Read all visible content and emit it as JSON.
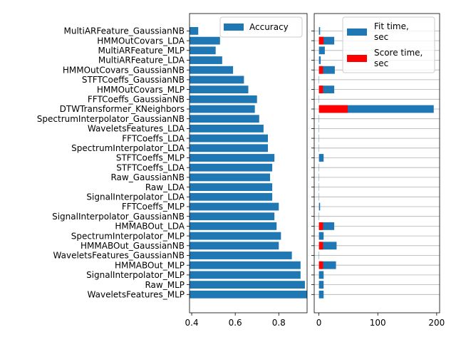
{
  "chart_data": [
    {
      "type": "bar",
      "orientation": "horizontal",
      "xlim": [
        0.39,
        0.93
      ],
      "xticks": [
        0.4,
        0.6,
        0.8
      ],
      "xticklabels": [
        "0.4",
        "0.6",
        "0.8"
      ],
      "legend": {
        "position": "top-right",
        "entries": [
          {
            "label": "Accuracy",
            "color": "#1f77b4"
          }
        ]
      },
      "categories": [
        "MultiARFeature_GaussianNB",
        "HMMOutCovars_LDA",
        "MultiARFeature_MLP",
        "MultiARFeature_LDA",
        "HMMOutCovars_GaussianNB",
        "STFTCoeffs_GaussianNB",
        "HMMOutCovars_MLP",
        "FFTCoeffs_GaussianNB",
        "DTWTransformer_KNeighbors",
        "SpectrumInterpolator_GaussianNB",
        "WaveletsFeatures_LDA",
        "FFTCoeffs_LDA",
        "SpectrumInterpolator_LDA",
        "STFTCoeffs_MLP",
        "STFTCoeffs_LDA",
        "Raw_GaussianNB",
        "Raw_LDA",
        "SignalInterpolator_LDA",
        "FFTCoeffs_MLP",
        "SignalInterpolator_GaussianNB",
        "HMMABOut_LDA",
        "SpectrumInterpolator_MLP",
        "HMMABOut_GaussianNB",
        "WaveletsFeatures_GaussianNB",
        "HMMABOut_MLP",
        "SignalInterpolator_MLP",
        "Raw_MLP",
        "WaveletsFeatures_MLP"
      ],
      "series": [
        {
          "name": "Accuracy",
          "color": "#1f77b4",
          "values": [
            0.43,
            0.53,
            0.51,
            0.54,
            0.59,
            0.64,
            0.66,
            0.7,
            0.69,
            0.71,
            0.73,
            0.75,
            0.75,
            0.78,
            0.77,
            0.76,
            0.77,
            0.77,
            0.8,
            0.78,
            0.79,
            0.81,
            0.8,
            0.86,
            0.9,
            0.9,
            0.92,
            0.93
          ]
        }
      ]
    },
    {
      "type": "bar",
      "orientation": "horizontal",
      "stacked": true,
      "xlim": [
        -8,
        205
      ],
      "xticks": [
        0,
        100,
        200
      ],
      "xticklabels": [
        "0",
        "100",
        "200"
      ],
      "grid": "horizontal",
      "legend": {
        "position": "top-right",
        "entries": [
          {
            "label": "Fit time,\nsec",
            "color": "#1f77b4"
          },
          {
            "label": "Score time,\nsec",
            "color": "#ff0000"
          }
        ]
      },
      "series": [
        {
          "name": "Fit time,\nsec",
          "color": "#1f77b4",
          "values": [
            2,
            26,
            10,
            3,
            27,
            0.5,
            26,
            0.5,
            195,
            0.5,
            0.5,
            0.5,
            0.5,
            8,
            0.5,
            0.5,
            0.5,
            0.5,
            2,
            0.5,
            26,
            8,
            30,
            0.5,
            29,
            8,
            8,
            8
          ]
        },
        {
          "name": "Score time,\nsec",
          "color": "#ff0000",
          "values": [
            0,
            8,
            0,
            0,
            7,
            0,
            7,
            0,
            49,
            0,
            0,
            0,
            0,
            0,
            0,
            0,
            0,
            0,
            0,
            0,
            7,
            0,
            7,
            0,
            7,
            0,
            0,
            0
          ]
        }
      ]
    }
  ]
}
